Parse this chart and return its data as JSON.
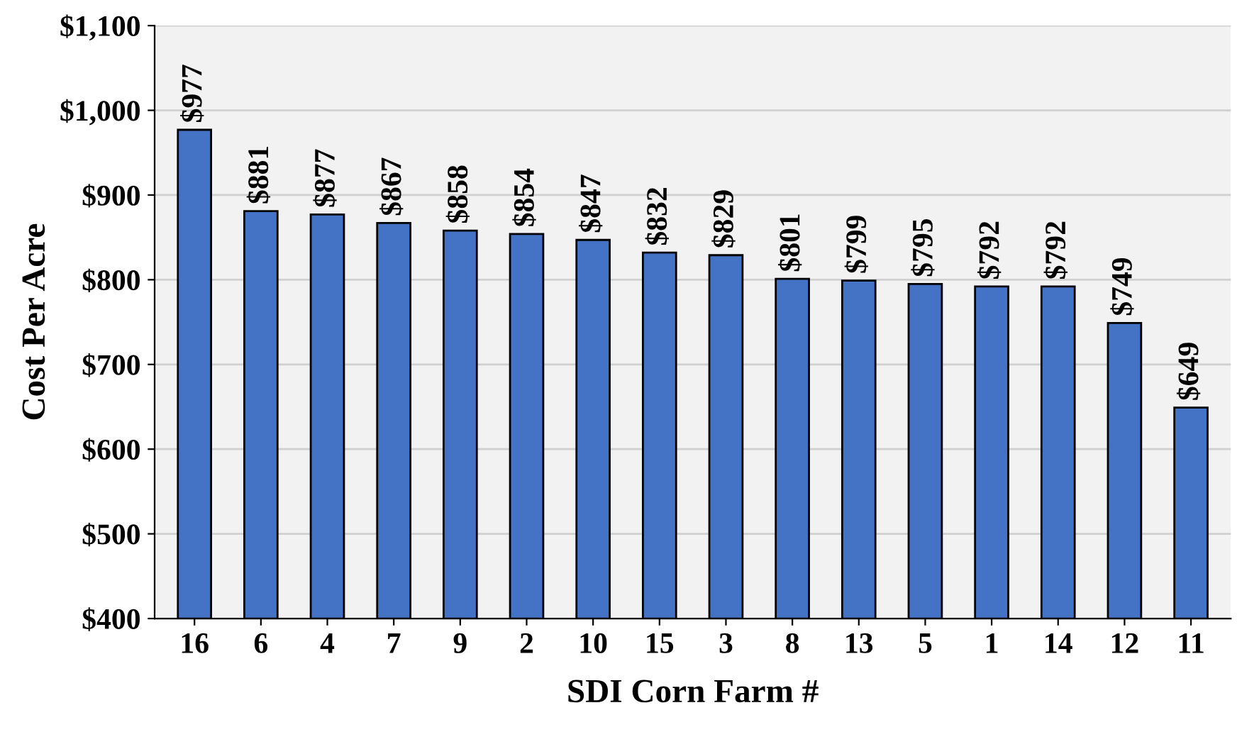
{
  "chart_data": {
    "type": "bar",
    "xlabel": "SDI Corn Farm #",
    "ylabel": "Cost Per Acre",
    "categories": [
      "16",
      "6",
      "4",
      "7",
      "9",
      "2",
      "10",
      "15",
      "3",
      "8",
      "13",
      "5",
      "1",
      "14",
      "12",
      "11"
    ],
    "values": [
      977,
      881,
      877,
      867,
      858,
      854,
      847,
      832,
      829,
      801,
      799,
      795,
      792,
      792,
      749,
      649
    ],
    "value_labels": [
      "$977",
      "$881",
      "$877",
      "$867",
      "$858",
      "$854",
      "$847",
      "$832",
      "$829",
      "$801",
      "$799",
      "$795",
      "$792",
      "$792",
      "$749",
      "$649"
    ],
    "color": "#4472c4",
    "ylim": [
      400,
      1100
    ],
    "yticks": [
      {
        "value": 400,
        "label": "$400"
      },
      {
        "value": 500,
        "label": "$500"
      },
      {
        "value": 600,
        "label": "$600"
      },
      {
        "value": 700,
        "label": "$700"
      },
      {
        "value": 800,
        "label": "$800"
      },
      {
        "value": 900,
        "label": "$900"
      },
      {
        "value": 1000,
        "label": "$1,000"
      },
      {
        "value": 1100,
        "label": "$1,100"
      }
    ],
    "grid": "y"
  }
}
